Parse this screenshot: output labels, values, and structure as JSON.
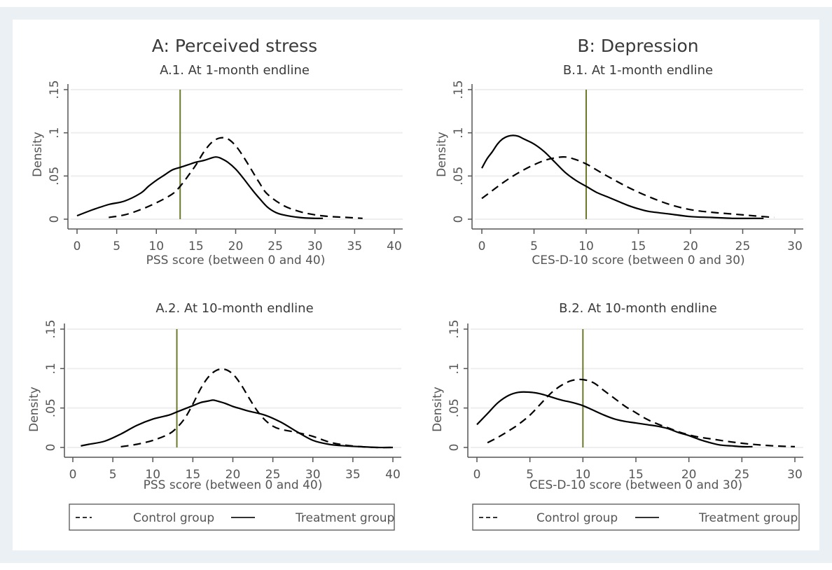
{
  "figure": {
    "left_title": "A: Perceived stress",
    "right_title": "B: Depression"
  },
  "colors": {
    "background_frame": "#eaf0f4",
    "curve": "#000000",
    "threshold_line": "#6b7a2a",
    "gridline": "#eeeeee",
    "axis": "#555555"
  },
  "legend": {
    "items": [
      {
        "label": "Control group",
        "style": "dashed"
      },
      {
        "label": "Treatment group",
        "style": "solid"
      }
    ]
  },
  "chart_data": [
    {
      "id": "A1",
      "type": "line",
      "title": "A.1. At 1-month endline",
      "xlabel": "PSS score (between 0 and 40)",
      "ylabel": "Density",
      "xlim": [
        0,
        40
      ],
      "ylim": [
        0,
        0.15
      ],
      "xticks": [
        "0",
        "5",
        "10",
        "15",
        "20",
        "25",
        "30",
        "35",
        "40"
      ],
      "xtick_values": [
        0,
        5,
        10,
        15,
        20,
        25,
        30,
        35,
        40
      ],
      "yticks": [
        "0",
        ".05",
        ".1",
        ".15"
      ],
      "ytick_values": [
        0,
        0.05,
        0.1,
        0.15
      ],
      "grid": true,
      "threshold_x": 13,
      "series": [
        {
          "name": "Control group",
          "style": "dashed",
          "x": [
            4,
            6,
            8,
            10,
            12,
            13,
            14,
            15,
            16,
            17,
            18,
            19,
            20,
            21,
            22,
            23,
            24,
            26,
            28,
            30,
            32,
            34,
            36
          ],
          "y": [
            0.002,
            0.005,
            0.011,
            0.019,
            0.029,
            0.038,
            0.05,
            0.063,
            0.078,
            0.089,
            0.094,
            0.093,
            0.085,
            0.072,
            0.057,
            0.042,
            0.029,
            0.016,
            0.009,
            0.005,
            0.003,
            0.002,
            0.001
          ]
        },
        {
          "name": "Treatment group",
          "style": "solid",
          "x": [
            0,
            2,
            4,
            6,
            8,
            9,
            10,
            11,
            12,
            13,
            14,
            15,
            16,
            17,
            17.5,
            18,
            19,
            20,
            21,
            22,
            23,
            24,
            25,
            26,
            28,
            30,
            31
          ],
          "y": [
            0.004,
            0.011,
            0.017,
            0.021,
            0.03,
            0.038,
            0.045,
            0.051,
            0.057,
            0.06,
            0.063,
            0.066,
            0.068,
            0.071,
            0.072,
            0.071,
            0.066,
            0.058,
            0.047,
            0.035,
            0.024,
            0.014,
            0.008,
            0.005,
            0.002,
            0.001,
            0.001
          ]
        }
      ]
    },
    {
      "id": "B1",
      "type": "line",
      "title": "B.1. At 1-month endline",
      "xlabel": "CES-D-10 score (between 0 and 30)",
      "ylabel": "Density",
      "xlim": [
        0,
        30
      ],
      "ylim": [
        0,
        0.15
      ],
      "xticks": [
        "0",
        "5",
        "10",
        "15",
        "20",
        "25",
        "30"
      ],
      "xtick_values": [
        0,
        5,
        10,
        15,
        20,
        25,
        30
      ],
      "yticks": [
        "0",
        ".05",
        ".1",
        ".15"
      ],
      "ytick_values": [
        0,
        0.05,
        0.1,
        0.15
      ],
      "grid": true,
      "threshold_x": 10,
      "series": [
        {
          "name": "Control group",
          "style": "dashed",
          "x": [
            0,
            1,
            2,
            3,
            4,
            5,
            6,
            7,
            8,
            9,
            10,
            11,
            12,
            14,
            16,
            18,
            20,
            22,
            24,
            26,
            28
          ],
          "y": [
            0.024,
            0.033,
            0.042,
            0.05,
            0.057,
            0.063,
            0.068,
            0.071,
            0.072,
            0.069,
            0.064,
            0.057,
            0.05,
            0.037,
            0.026,
            0.017,
            0.011,
            0.008,
            0.006,
            0.004,
            0.002
          ]
        },
        {
          "name": "Treatment group",
          "style": "solid",
          "x": [
            0,
            0.5,
            1,
            1.5,
            2,
            2.5,
            3,
            3.5,
            4,
            5,
            6,
            7,
            8,
            9,
            10,
            11,
            12,
            13,
            14,
            15,
            16,
            18,
            20,
            22,
            24,
            26,
            27
          ],
          "y": [
            0.059,
            0.07,
            0.078,
            0.087,
            0.093,
            0.096,
            0.097,
            0.096,
            0.093,
            0.087,
            0.078,
            0.066,
            0.054,
            0.045,
            0.038,
            0.031,
            0.026,
            0.021,
            0.016,
            0.012,
            0.009,
            0.006,
            0.003,
            0.002,
            0.001,
            0.001,
            0.001
          ]
        }
      ]
    },
    {
      "id": "A2",
      "type": "line",
      "title": "A.2. At 10-month endline",
      "xlabel": "PSS score (between 0 and 40)",
      "ylabel": "Density",
      "xlim": [
        0,
        40
      ],
      "ylim": [
        0,
        0.15
      ],
      "xticks": [
        "0",
        "5",
        "10",
        "15",
        "20",
        "25",
        "30",
        "35",
        "40"
      ],
      "xtick_values": [
        0,
        5,
        10,
        15,
        20,
        25,
        30,
        35,
        40
      ],
      "yticks": [
        "0",
        ".05",
        ".1",
        ".15"
      ],
      "ytick_values": [
        0,
        0.05,
        0.1,
        0.15
      ],
      "grid": true,
      "threshold_x": 13,
      "series": [
        {
          "name": "Control group",
          "style": "dashed",
          "x": [
            6,
            8,
            10,
            12,
            13,
            14,
            15,
            16,
            17,
            18,
            19,
            20,
            21,
            22,
            23,
            24,
            25,
            26,
            28,
            30,
            32,
            34,
            36,
            38,
            40
          ],
          "y": [
            0.001,
            0.004,
            0.009,
            0.017,
            0.025,
            0.037,
            0.055,
            0.075,
            0.09,
            0.098,
            0.099,
            0.093,
            0.08,
            0.063,
            0.047,
            0.035,
            0.027,
            0.023,
            0.019,
            0.014,
            0.007,
            0.003,
            0.001,
            0.0,
            0.0
          ]
        },
        {
          "name": "Treatment group",
          "style": "solid",
          "x": [
            1,
            2,
            4,
            6,
            8,
            10,
            12,
            13,
            14,
            15,
            16,
            17,
            17.5,
            18,
            19,
            20,
            21,
            22,
            24,
            26,
            28,
            30,
            32,
            34,
            36,
            38,
            40
          ],
          "y": [
            0.002,
            0.004,
            0.008,
            0.017,
            0.028,
            0.036,
            0.041,
            0.045,
            0.049,
            0.053,
            0.057,
            0.059,
            0.06,
            0.059,
            0.056,
            0.052,
            0.049,
            0.046,
            0.041,
            0.032,
            0.02,
            0.009,
            0.004,
            0.002,
            0.001,
            0.0,
            0.0
          ]
        }
      ]
    },
    {
      "id": "B2",
      "type": "line",
      "title": "B.2. At 10-month endline",
      "xlabel": "CES-D-10 score (between 0 and 30)",
      "ylabel": "Density",
      "xlim": [
        0,
        30
      ],
      "ylim": [
        0,
        0.15
      ],
      "xticks": [
        "0",
        "5",
        "10",
        "15",
        "20",
        "25",
        "30"
      ],
      "xtick_values": [
        0,
        5,
        10,
        15,
        20,
        25,
        30
      ],
      "yticks": [
        "0",
        ".05",
        ".1",
        ".15"
      ],
      "ytick_values": [
        0,
        0.05,
        0.1,
        0.15
      ],
      "grid": true,
      "threshold_x": 10,
      "series": [
        {
          "name": "Control group",
          "style": "dashed",
          "x": [
            1,
            2,
            3,
            4,
            5,
            6,
            7,
            8,
            9,
            10,
            11,
            12,
            13,
            14,
            15,
            16,
            17,
            18,
            19,
            20,
            21,
            22,
            24,
            26,
            28,
            30
          ],
          "y": [
            0.006,
            0.013,
            0.021,
            0.03,
            0.041,
            0.055,
            0.069,
            0.079,
            0.085,
            0.086,
            0.082,
            0.072,
            0.062,
            0.052,
            0.044,
            0.036,
            0.03,
            0.025,
            0.02,
            0.016,
            0.013,
            0.011,
            0.007,
            0.004,
            0.002,
            0.001
          ]
        },
        {
          "name": "Treatment group",
          "style": "solid",
          "x": [
            0,
            1,
            2,
            3,
            4,
            5,
            6,
            7,
            8,
            9,
            10,
            11,
            12,
            13,
            14,
            15,
            16,
            17,
            18,
            19,
            20,
            21,
            22,
            23,
            24,
            25,
            26
          ],
          "y": [
            0.029,
            0.043,
            0.057,
            0.066,
            0.07,
            0.07,
            0.068,
            0.064,
            0.06,
            0.057,
            0.053,
            0.047,
            0.041,
            0.036,
            0.033,
            0.031,
            0.029,
            0.027,
            0.024,
            0.019,
            0.015,
            0.01,
            0.006,
            0.003,
            0.002,
            0.001,
            0.001
          ]
        }
      ]
    }
  ]
}
